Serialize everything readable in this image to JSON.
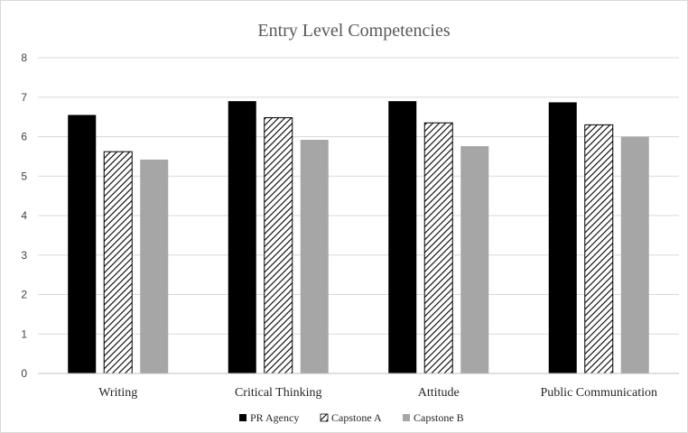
{
  "chart_data": {
    "type": "bar",
    "title": "Entry Level Competencies",
    "xlabel": "",
    "ylabel": "",
    "ylim": [
      0,
      8
    ],
    "yticks": [
      "0",
      "1",
      "2",
      "3",
      "4",
      "5",
      "6",
      "7",
      "8"
    ],
    "categories": [
      "Writing",
      "Critical Thinking",
      "Attitude",
      "Public Communication"
    ],
    "series": [
      {
        "name": "PR Agency",
        "values": [
          6.55,
          6.9,
          6.9,
          6.87
        ],
        "color": "#000000",
        "pattern": "solid"
      },
      {
        "name": "Capstone A",
        "values": [
          5.62,
          6.48,
          6.35,
          6.3
        ],
        "color": "#000000",
        "pattern": "diagonal-hatch"
      },
      {
        "name": "Capstone B",
        "values": [
          5.42,
          5.92,
          5.76,
          6.0
        ],
        "color": "#a6a6a6",
        "pattern": "solid"
      }
    ],
    "grid": true,
    "legend_position": "bottom"
  }
}
